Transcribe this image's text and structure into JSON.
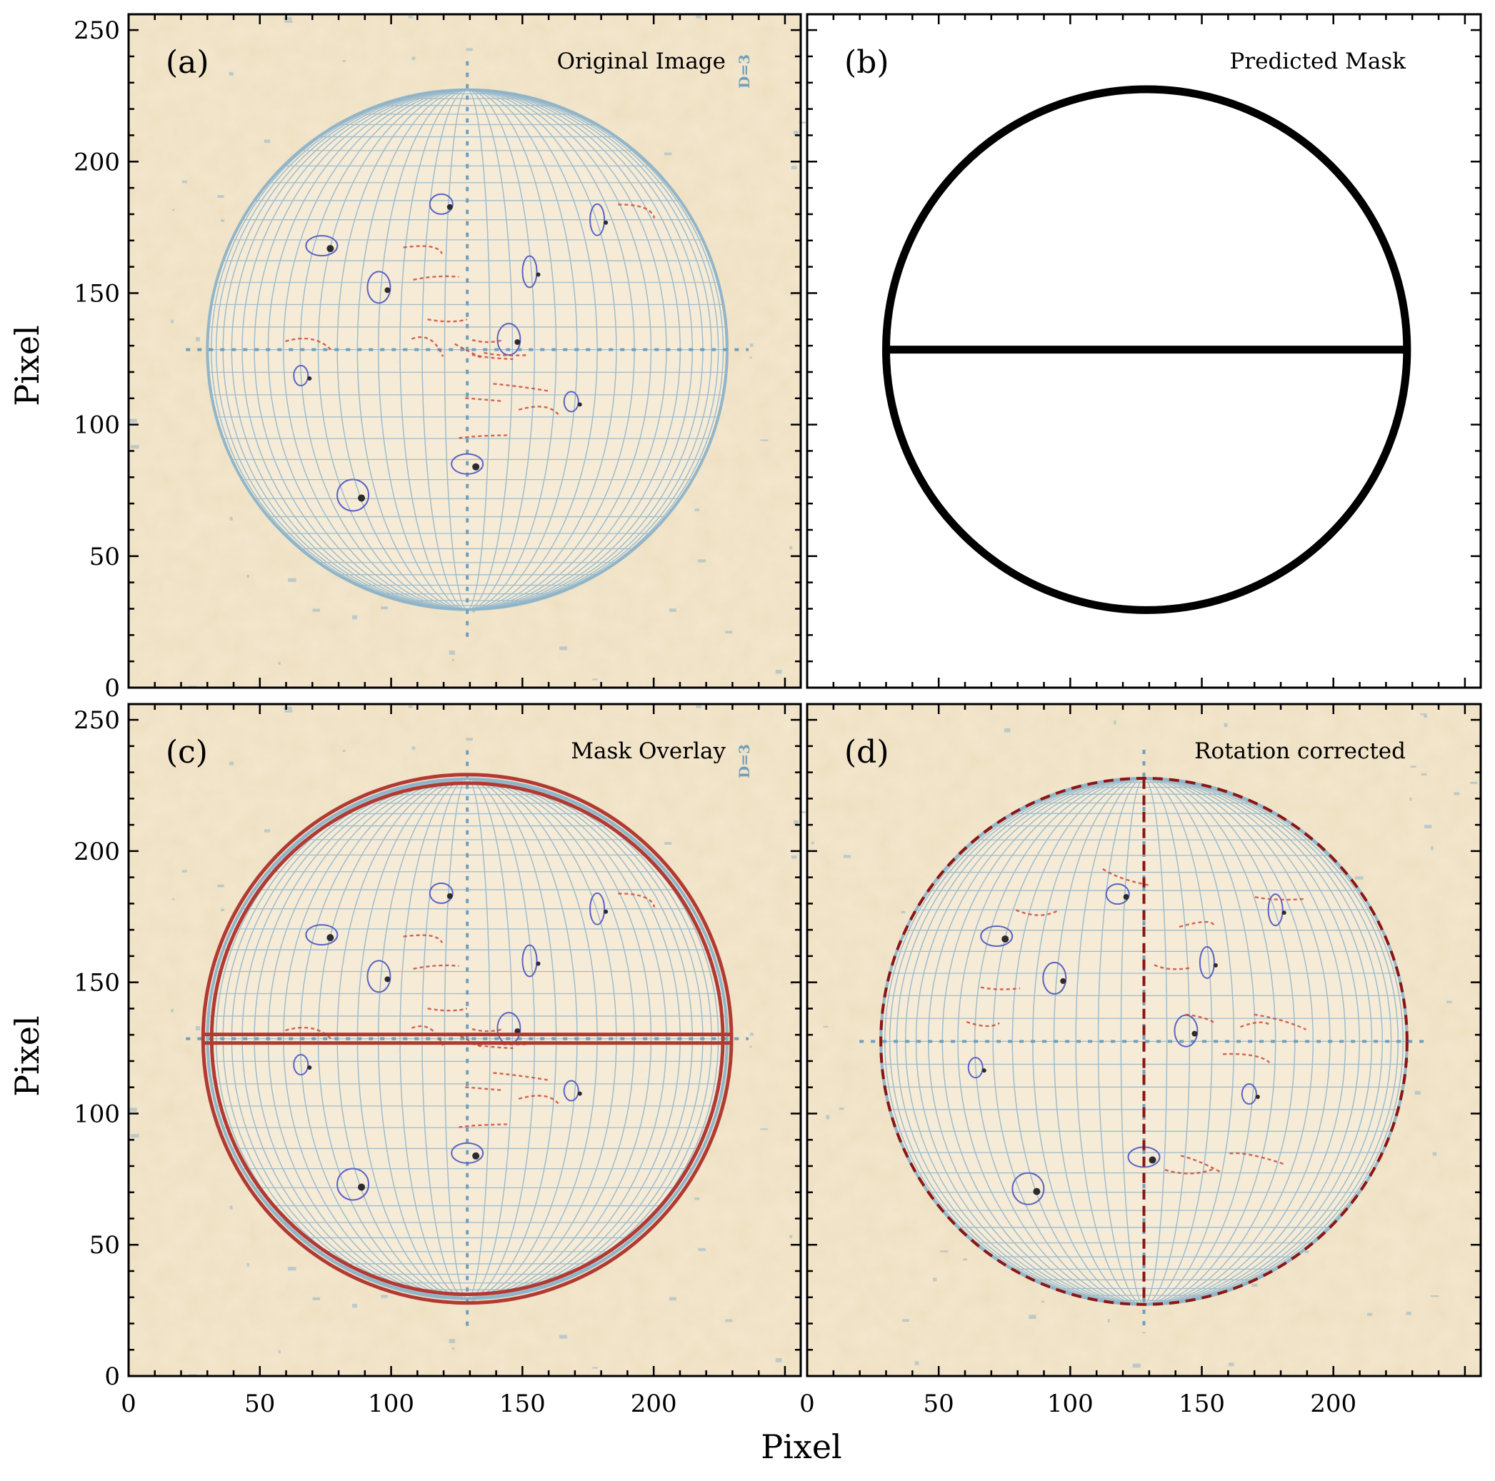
{
  "axis": {
    "xlabel": "Pixel",
    "ylabel": "Pixel",
    "xlim": [
      0,
      256
    ],
    "ylim": [
      0,
      256
    ],
    "xticks": [
      0,
      50,
      100,
      150,
      200
    ],
    "yticks": [
      0,
      50,
      100,
      150,
      200,
      250
    ]
  },
  "panels": [
    {
      "id": "a",
      "letter": "(a)",
      "title": "Original Image"
    },
    {
      "id": "b",
      "letter": "(b)",
      "title": "Predicted Mask"
    },
    {
      "id": "c",
      "letter": "(c)",
      "title": "Mask Overlay"
    },
    {
      "id": "d",
      "letter": "(d)",
      "title": "Rotation corrected"
    }
  ],
  "colors": {
    "paper": "#f3e7cf",
    "grid": "#8fb4c9",
    "axis_line": "#6f9fbd",
    "ink_red": "#cc4a3a",
    "ink_blue": "#5a63c4",
    "mask": "#000000",
    "overlay": "#b13a33",
    "dashed": "#8b1515"
  },
  "disk": {
    "original": {
      "cx": 129,
      "cy": 128.5,
      "r": 99
    },
    "rotated": {
      "cx": 128,
      "cy": 127.5,
      "r": 100
    }
  },
  "stamp_text": "D=3"
}
